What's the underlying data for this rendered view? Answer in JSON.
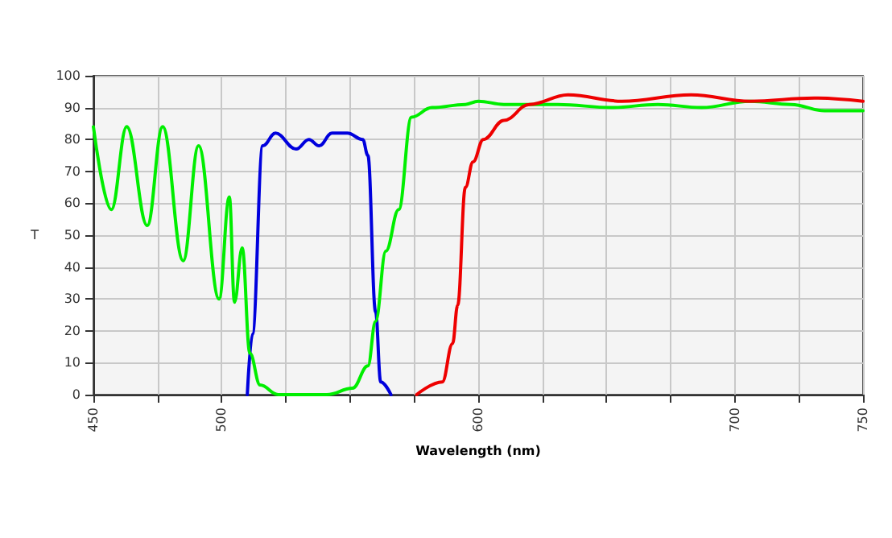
{
  "chart_data": {
    "type": "line",
    "xlabel": "Wavelength (nm)",
    "ylabel": "T",
    "xlim": [
      450,
      750
    ],
    "xticks": [
      450,
      {
        "value": 475,
        "label": null
      },
      500,
      {
        "value": 525,
        "label": null
      },
      {
        "value": 550,
        "label": null
      },
      {
        "value": 575,
        "label": null
      },
      600,
      {
        "value": 625,
        "label": null
      },
      {
        "value": 650,
        "label": null
      },
      {
        "value": 675,
        "label": null
      },
      700,
      {
        "value": 725,
        "label": null
      },
      750
    ],
    "ylim": [
      0,
      100
    ],
    "yticks": [
      0,
      10,
      20,
      30,
      40,
      50,
      60,
      70,
      80,
      90,
      100
    ],
    "grid": true,
    "marker": "none",
    "line_style": "solid",
    "series": [
      {
        "color": "#0000dd",
        "x": [
          510,
          512,
          516,
          521,
          529,
          534,
          538,
          543,
          549,
          555,
          557,
          560,
          562,
          566
        ],
        "values": [
          0,
          19,
          78,
          82,
          77,
          80,
          78,
          82,
          82,
          80,
          75,
          26,
          4,
          0
        ]
      },
      {
        "color": "#00ee00",
        "x": [
          450,
          457,
          463,
          471,
          477,
          485,
          491,
          499,
          503,
          505,
          508,
          511,
          515,
          522,
          541,
          551,
          557,
          560,
          564,
          569,
          574,
          582,
          595,
          600,
          610,
          631,
          652,
          670,
          687,
          706,
          722,
          735,
          750
        ],
        "values": [
          84,
          58,
          84,
          53,
          84,
          42,
          78,
          30,
          62,
          29,
          46,
          13,
          3,
          0,
          0,
          2,
          9,
          23,
          45,
          58,
          87,
          90,
          91,
          92,
          91,
          91,
          90,
          91,
          90,
          92,
          91,
          89,
          89
        ]
      },
      {
        "color": "#ee0000",
        "x": [
          576,
          586,
          590,
          592,
          595,
          598,
          602,
          610,
          620,
          635,
          656,
          683,
          706,
          731,
          750
        ],
        "values": [
          0,
          4,
          16,
          28,
          65,
          73,
          80,
          86,
          91,
          94,
          92,
          94,
          92,
          93,
          92
        ]
      }
    ]
  }
}
